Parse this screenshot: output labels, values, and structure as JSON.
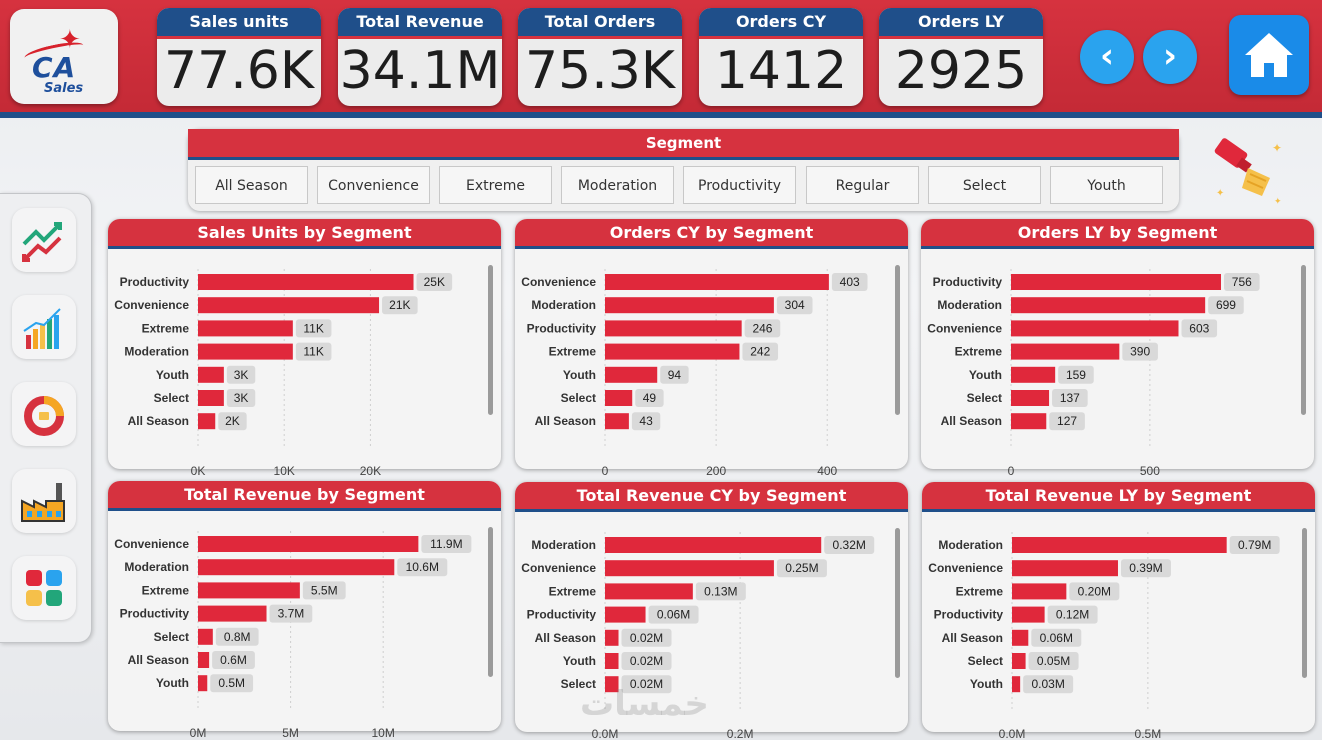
{
  "logo": {
    "line1": "CA",
    "line2": "Sales"
  },
  "kpis": [
    {
      "title": "Sales units",
      "value": "77.6K"
    },
    {
      "title": "Total Revenue",
      "value": "34.1M"
    },
    {
      "title": "Total Orders",
      "value": "75.3K"
    },
    {
      "title": "Orders CY",
      "value": "1412"
    },
    {
      "title": "Orders LY",
      "value": "2925"
    }
  ],
  "nav": {
    "back": "‹",
    "forward": "›"
  },
  "segment": {
    "title": "Segment",
    "options": [
      "All Season",
      "Convenience",
      "Extreme",
      "Moderation",
      "Productivity",
      "Regular",
      "Select",
      "Youth"
    ]
  },
  "watermark": "خمسات",
  "colors": {
    "accent": "#d6323f",
    "header_blue": "#1f4f8a",
    "bar": "#e0283b",
    "button_blue": "#2aa3ee"
  },
  "chart_data": [
    {
      "type": "bar",
      "orientation": "horizontal",
      "title": "Sales Units by Segment",
      "categories": [
        "Productivity",
        "Convenience",
        "Extreme",
        "Moderation",
        "Youth",
        "Select",
        "All Season"
      ],
      "values": [
        25000,
        21000,
        11000,
        11000,
        3000,
        3000,
        2000
      ],
      "labels": [
        "25K",
        "21K",
        "11K",
        "11K",
        "3K",
        "3K",
        "2K"
      ],
      "xticks": [
        0,
        10000,
        20000
      ],
      "xtick_labels": [
        "0K",
        "10K",
        "20K"
      ],
      "xlim": [
        0,
        29000
      ]
    },
    {
      "type": "bar",
      "orientation": "horizontal",
      "title": "Orders CY by Segment",
      "categories": [
        "Convenience",
        "Moderation",
        "Productivity",
        "Extreme",
        "Youth",
        "Select",
        "All Season"
      ],
      "values": [
        403,
        304,
        246,
        242,
        94,
        49,
        43
      ],
      "labels": [
        "403",
        "304",
        "246",
        "242",
        "94",
        "49",
        "43"
      ],
      "xticks": [
        0,
        200,
        400
      ],
      "xtick_labels": [
        "0",
        "200",
        "400"
      ],
      "xlim": [
        0,
        450
      ]
    },
    {
      "type": "bar",
      "orientation": "horizontal",
      "title": "Orders LY by Segment",
      "categories": [
        "Productivity",
        "Moderation",
        "Convenience",
        "Extreme",
        "Youth",
        "Select",
        "All Season"
      ],
      "values": [
        756,
        699,
        603,
        390,
        159,
        137,
        127
      ],
      "labels": [
        "756",
        "699",
        "603",
        "390",
        "159",
        "137",
        "127"
      ],
      "xticks": [
        0,
        500
      ],
      "xtick_labels": [
        "0",
        "500"
      ],
      "xlim": [
        0,
        900
      ]
    },
    {
      "type": "bar",
      "orientation": "horizontal",
      "title": "Total Revenue by Segment",
      "categories": [
        "Convenience",
        "Moderation",
        "Extreme",
        "Productivity",
        "Select",
        "All Season",
        "Youth"
      ],
      "values": [
        11.9,
        10.6,
        5.5,
        3.7,
        0.8,
        0.6,
        0.5
      ],
      "labels": [
        "11.9M",
        "10.6M",
        "5.5M",
        "3.7M",
        "0.8M",
        "0.6M",
        "0.5M"
      ],
      "xticks": [
        0,
        5,
        10
      ],
      "xtick_labels": [
        "0M",
        "5M",
        "10M"
      ],
      "xlim": [
        0,
        13.5
      ]
    },
    {
      "type": "bar",
      "orientation": "horizontal",
      "title": "Total Revenue CY by Segment",
      "categories": [
        "Moderation",
        "Convenience",
        "Extreme",
        "Productivity",
        "All Season",
        "Youth",
        "Select"
      ],
      "values": [
        0.32,
        0.25,
        0.13,
        0.06,
        0.02,
        0.02,
        0.02
      ],
      "labels": [
        "0.32M",
        "0.25M",
        "0.13M",
        "0.06M",
        "0.02M",
        "0.02M",
        "0.02M"
      ],
      "xticks": [
        0,
        0.2
      ],
      "xtick_labels": [
        "0.0M",
        "0.2M"
      ],
      "xlim": [
        0,
        0.37
      ]
    },
    {
      "type": "bar",
      "orientation": "horizontal",
      "title": "Total Revenue LY by Segment",
      "categories": [
        "Moderation",
        "Convenience",
        "Extreme",
        "Productivity",
        "All Season",
        "Select",
        "Youth"
      ],
      "values": [
        0.79,
        0.39,
        0.2,
        0.12,
        0.06,
        0.05,
        0.03
      ],
      "labels": [
        "0.79M",
        "0.39M",
        "0.20M",
        "0.12M",
        "0.06M",
        "0.05M",
        "0.03M"
      ],
      "xticks": [
        0,
        0.5
      ],
      "xtick_labels": [
        "0.0M",
        "0.5M"
      ],
      "xlim": [
        0,
        0.92
      ]
    }
  ]
}
